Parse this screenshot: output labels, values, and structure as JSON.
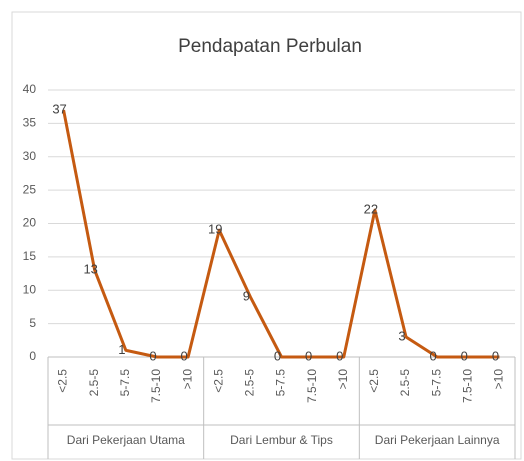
{
  "chart_data": {
    "type": "line",
    "title": "Pendapatan Perbulan",
    "categories": [
      "<2.5",
      "2.5-5",
      "5-7.5",
      "7.5-10",
      ">10",
      "<2.5",
      "2.5-5",
      "5-7.5",
      "7.5-10",
      ">10",
      "<2.5",
      "2.5-5",
      "5-7.5",
      "7.5-10",
      ">10"
    ],
    "groups": [
      "Dari Pekerjaan Utama",
      "Dari Lembur & Tips",
      "Dari Pekerjaan Lainnya"
    ],
    "values": [
      37,
      13,
      1,
      0,
      0,
      19,
      9,
      0,
      0,
      0,
      22,
      3,
      0,
      0,
      0
    ],
    "color": "#c55a11",
    "ylim": [
      0,
      40
    ],
    "yticks": [
      0,
      5,
      10,
      15,
      20,
      25,
      30,
      35,
      40
    ],
    "grid": true
  }
}
